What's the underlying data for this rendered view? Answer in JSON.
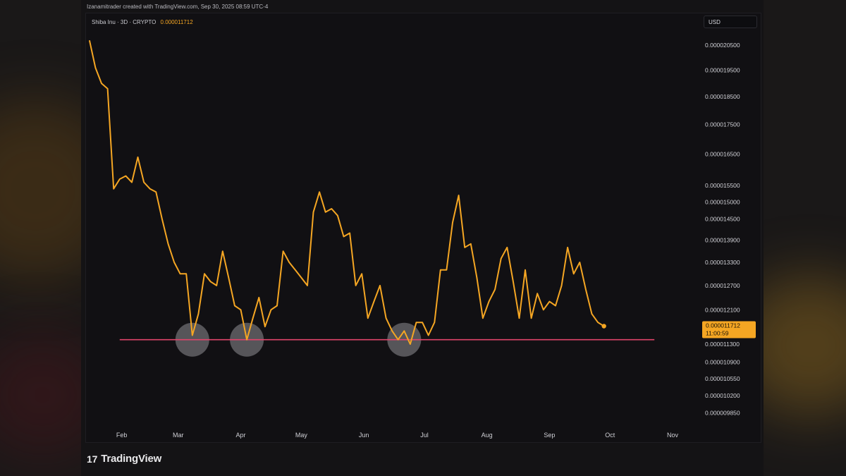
{
  "header": {
    "credit": "Izanamitrader created with TradingView.com, Sep 30, 2025 08:59 UTC-4"
  },
  "legend": {
    "symbol": "Shiba Inu · 3D · CRYPTO",
    "price": "0.000011712"
  },
  "currency_button": "USD",
  "brand": {
    "logo_text": "17",
    "name": "TradingView"
  },
  "colors": {
    "line": "#f5a623",
    "support": "#e0446a",
    "price_tag_bg": "#f5a623"
  },
  "chart_data": {
    "type": "line",
    "title": "",
    "xlabel": "",
    "ylabel": "",
    "x_tick_labels": [
      "Feb",
      "Mar",
      "Apr",
      "May",
      "Jun",
      "Jul",
      "Aug",
      "Sep",
      "Oct",
      "Nov"
    ],
    "y_tick_labels": [
      "0.000020500",
      "0.000019500",
      "0.000018500",
      "0.000017500",
      "0.000016500",
      "0.000015500",
      "0.000015000",
      "0.000014500",
      "0.000013900",
      "0.000013300",
      "0.000012700",
      "0.000012100",
      "0.000011300",
      "0.000010900",
      "0.000010550",
      "0.000010200",
      "0.000009850"
    ],
    "y_scale": "log",
    "ylim": [
      9.6e-06,
      2.1e-05
    ],
    "xlim": [
      "2025-01-15",
      "2025-11-08"
    ],
    "series": [
      {
        "values": [
          [
            "2025-01-16",
            2.07e-05
          ],
          [
            "2025-01-19",
            1.96e-05
          ],
          [
            "2025-01-22",
            1.9e-05
          ],
          [
            "2025-01-25",
            1.88e-05
          ],
          [
            "2025-01-28",
            1.54e-05
          ],
          [
            "2025-01-31",
            1.57e-05
          ],
          [
            "2025-02-03",
            1.58e-05
          ],
          [
            "2025-02-06",
            1.56e-05
          ],
          [
            "2025-02-09",
            1.64e-05
          ],
          [
            "2025-02-12",
            1.56e-05
          ],
          [
            "2025-02-15",
            1.54e-05
          ],
          [
            "2025-02-18",
            1.53e-05
          ],
          [
            "2025-02-21",
            1.45e-05
          ],
          [
            "2025-02-24",
            1.38e-05
          ],
          [
            "2025-02-27",
            1.33e-05
          ],
          [
            "2025-03-02",
            1.3e-05
          ],
          [
            "2025-03-05",
            1.3e-05
          ],
          [
            "2025-03-08",
            1.15e-05
          ],
          [
            "2025-03-11",
            1.2e-05
          ],
          [
            "2025-03-14",
            1.3e-05
          ],
          [
            "2025-03-17",
            1.28e-05
          ],
          [
            "2025-03-20",
            1.27e-05
          ],
          [
            "2025-03-23",
            1.36e-05
          ],
          [
            "2025-03-26",
            1.29e-05
          ],
          [
            "2025-03-29",
            1.22e-05
          ],
          [
            "2025-04-01",
            1.21e-05
          ],
          [
            "2025-04-04",
            1.14e-05
          ],
          [
            "2025-04-07",
            1.19e-05
          ],
          [
            "2025-04-10",
            1.24e-05
          ],
          [
            "2025-04-13",
            1.17e-05
          ],
          [
            "2025-04-16",
            1.21e-05
          ],
          [
            "2025-04-19",
            1.22e-05
          ],
          [
            "2025-04-22",
            1.36e-05
          ],
          [
            "2025-04-25",
            1.33e-05
          ],
          [
            "2025-04-28",
            1.31e-05
          ],
          [
            "2025-05-01",
            1.29e-05
          ],
          [
            "2025-05-04",
            1.27e-05
          ],
          [
            "2025-05-07",
            1.47e-05
          ],
          [
            "2025-05-10",
            1.53e-05
          ],
          [
            "2025-05-13",
            1.47e-05
          ],
          [
            "2025-05-16",
            1.48e-05
          ],
          [
            "2025-05-19",
            1.46e-05
          ],
          [
            "2025-05-22",
            1.4e-05
          ],
          [
            "2025-05-25",
            1.41e-05
          ],
          [
            "2025-05-28",
            1.27e-05
          ],
          [
            "2025-05-31",
            1.3e-05
          ],
          [
            "2025-06-03",
            1.19e-05
          ],
          [
            "2025-06-06",
            1.23e-05
          ],
          [
            "2025-06-09",
            1.27e-05
          ],
          [
            "2025-06-12",
            1.19e-05
          ],
          [
            "2025-06-15",
            1.16e-05
          ],
          [
            "2025-06-18",
            1.14e-05
          ],
          [
            "2025-06-21",
            1.16e-05
          ],
          [
            "2025-06-24",
            1.13e-05
          ],
          [
            "2025-06-27",
            1.18e-05
          ],
          [
            "2025-06-30",
            1.18e-05
          ],
          [
            "2025-07-03",
            1.15e-05
          ],
          [
            "2025-07-06",
            1.18e-05
          ],
          [
            "2025-07-09",
            1.31e-05
          ],
          [
            "2025-07-12",
            1.31e-05
          ],
          [
            "2025-07-15",
            1.44e-05
          ],
          [
            "2025-07-18",
            1.52e-05
          ],
          [
            "2025-07-21",
            1.37e-05
          ],
          [
            "2025-07-24",
            1.38e-05
          ],
          [
            "2025-07-27",
            1.29e-05
          ],
          [
            "2025-07-30",
            1.19e-05
          ],
          [
            "2025-08-02",
            1.23e-05
          ],
          [
            "2025-08-05",
            1.26e-05
          ],
          [
            "2025-08-08",
            1.34e-05
          ],
          [
            "2025-08-11",
            1.37e-05
          ],
          [
            "2025-08-14",
            1.28e-05
          ],
          [
            "2025-08-17",
            1.19e-05
          ],
          [
            "2025-08-20",
            1.31e-05
          ],
          [
            "2025-08-23",
            1.19e-05
          ],
          [
            "2025-08-26",
            1.25e-05
          ],
          [
            "2025-08-29",
            1.21e-05
          ],
          [
            "2025-09-01",
            1.23e-05
          ],
          [
            "2025-09-04",
            1.22e-05
          ],
          [
            "2025-09-07",
            1.27e-05
          ],
          [
            "2025-09-10",
            1.37e-05
          ],
          [
            "2025-09-13",
            1.3e-05
          ],
          [
            "2025-09-16",
            1.33e-05
          ],
          [
            "2025-09-19",
            1.26e-05
          ],
          [
            "2025-09-22",
            1.2e-05
          ],
          [
            "2025-09-25",
            1.18e-05
          ],
          [
            "2025-09-28",
            1.1712e-05
          ]
        ]
      }
    ],
    "support_level": 1.14e-05,
    "support_range": [
      "2025-01-31",
      "2025-10-23"
    ],
    "highlighted_lows": [
      "2025-03-08",
      "2025-04-04",
      "2025-06-21"
    ],
    "last_price_label": "0.000011712",
    "countdown_label": "11:00:59",
    "legend": "none",
    "grid": false
  }
}
